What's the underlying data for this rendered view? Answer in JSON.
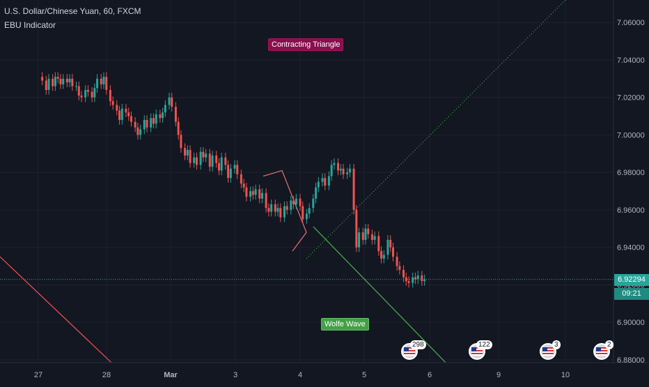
{
  "header": {
    "title": "U.S. Dollar/Chinese Yuan, 60, FXCM",
    "indicator": "EBU Indicator"
  },
  "annotations": {
    "contracting_triangle": "Contracting Triangle",
    "wolfe_wave": "Wolfe Wave"
  },
  "price_tag": {
    "price": "6.92294",
    "countdown": "09:21"
  },
  "events": [
    {
      "count": "298"
    },
    {
      "count": "122"
    },
    {
      "count": "3"
    },
    {
      "count": "2"
    }
  ],
  "colors": {
    "background": "#131722",
    "up": "#26a69a",
    "down": "#ef5350",
    "grid": "#1e222d",
    "tri": "#e57373",
    "wolfe": "#4caf50",
    "label_tri": "#880e4f",
    "label_wolfe": "#43a047"
  },
  "chart_data": {
    "type": "candlestick",
    "title": "U.S. Dollar/Chinese Yuan, 60, FXCM",
    "xlabel": "",
    "ylabel": "",
    "y_ticks": [
      "6.88000",
      "6.90000",
      "6.92000",
      "6.94000",
      "6.96000",
      "6.98000",
      "7.00000",
      "7.02000",
      "7.04000",
      "7.06000"
    ],
    "ylim": [
      6.8785,
      7.072
    ],
    "x_ticks": [
      "27",
      "28",
      "Mar",
      "3",
      "4",
      "5",
      "6",
      "9",
      "10"
    ],
    "grid": true,
    "current_price": 6.92294,
    "close_path": [
      [
        0.0,
        7.031
      ],
      [
        0.03,
        7.029
      ],
      [
        0.06,
        7.024
      ],
      [
        0.08,
        7.03
      ],
      [
        0.11,
        7.026
      ],
      [
        0.13,
        7.031
      ],
      [
        0.15,
        7.03
      ],
      [
        0.17,
        7.027
      ],
      [
        0.19,
        7.03
      ],
      [
        0.22,
        7.028
      ],
      [
        0.24,
        7.03
      ],
      [
        0.26,
        7.026
      ],
      [
        0.29,
        7.026
      ],
      [
        0.31,
        7.021
      ],
      [
        0.33,
        7.02
      ],
      [
        0.36,
        7.024
      ],
      [
        0.38,
        7.023
      ],
      [
        0.41,
        7.02
      ],
      [
        0.43,
        7.025
      ],
      [
        0.45,
        7.03
      ],
      [
        0.48,
        7.027
      ],
      [
        0.5,
        7.031
      ],
      [
        0.52,
        7.024
      ],
      [
        0.55,
        7.018
      ],
      [
        0.57,
        7.016
      ],
      [
        0.6,
        7.013
      ],
      [
        0.62,
        7.008
      ],
      [
        0.64,
        7.014
      ],
      [
        0.67,
        7.012
      ],
      [
        0.69,
        7.01
      ],
      [
        0.71,
        7.007
      ],
      [
        0.74,
        7.004
      ],
      [
        0.76,
        7.0
      ],
      [
        0.78,
        7.003
      ],
      [
        0.81,
        7.008
      ],
      [
        0.83,
        7.004
      ],
      [
        0.86,
        7.009
      ],
      [
        0.88,
        7.006
      ],
      [
        0.9,
        7.011
      ],
      [
        0.93,
        7.009
      ],
      [
        0.95,
        7.012
      ],
      [
        0.97,
        7.016
      ],
      [
        1.0,
        7.02
      ],
      [
        1.02,
        7.015
      ],
      [
        1.05,
        7.007
      ],
      [
        1.07,
        7.0
      ],
      [
        1.09,
        6.993
      ],
      [
        1.12,
        6.989
      ],
      [
        1.14,
        6.992
      ],
      [
        1.16,
        6.985
      ],
      [
        1.19,
        6.988
      ],
      [
        1.21,
        6.984
      ],
      [
        1.24,
        6.991
      ],
      [
        1.26,
        6.988
      ],
      [
        1.28,
        6.99
      ],
      [
        1.31,
        6.983
      ],
      [
        1.33,
        6.989
      ],
      [
        1.36,
        6.985
      ],
      [
        1.38,
        6.981
      ],
      [
        1.4,
        6.988
      ],
      [
        1.43,
        6.984
      ],
      [
        1.45,
        6.977
      ],
      [
        1.47,
        6.982
      ],
      [
        1.5,
        6.984
      ],
      [
        1.52,
        6.979
      ],
      [
        1.55,
        6.974
      ],
      [
        1.57,
        6.972
      ],
      [
        1.59,
        6.967
      ],
      [
        1.62,
        6.97
      ],
      [
        1.64,
        6.968
      ],
      [
        1.66,
        6.971
      ],
      [
        1.69,
        6.966
      ],
      [
        1.71,
        6.969
      ],
      [
        1.74,
        6.961
      ],
      [
        1.76,
        6.959
      ],
      [
        1.78,
        6.963
      ],
      [
        1.81,
        6.959
      ],
      [
        1.83,
        6.961
      ],
      [
        1.85,
        6.956
      ],
      [
        1.88,
        6.962
      ],
      [
        1.9,
        6.96
      ],
      [
        1.93,
        6.965
      ],
      [
        1.95,
        6.963
      ],
      [
        1.97,
        6.966
      ],
      [
        2.0,
        6.962
      ],
      [
        2.02,
        6.955
      ],
      [
        2.05,
        6.958
      ],
      [
        2.07,
        6.961
      ],
      [
        2.1,
        6.966
      ],
      [
        2.12,
        6.972
      ],
      [
        2.14,
        6.975
      ],
      [
        2.17,
        6.977
      ],
      [
        2.19,
        6.973
      ],
      [
        2.22,
        6.978
      ],
      [
        2.24,
        6.984
      ],
      [
        2.26,
        6.985
      ],
      [
        2.29,
        6.981
      ],
      [
        2.31,
        6.982
      ],
      [
        2.33,
        6.979
      ],
      [
        2.36,
        6.98
      ],
      [
        2.38,
        6.982
      ],
      [
        2.41,
        6.96
      ],
      [
        2.43,
        6.94
      ],
      [
        2.45,
        6.948
      ],
      [
        2.48,
        6.944
      ],
      [
        2.5,
        6.95
      ],
      [
        2.52,
        6.947
      ],
      [
        2.55,
        6.944
      ],
      [
        2.57,
        6.946
      ],
      [
        2.6,
        6.938
      ],
      [
        2.62,
        6.934
      ],
      [
        2.64,
        6.936
      ],
      [
        2.67,
        6.944
      ],
      [
        2.69,
        6.94
      ],
      [
        2.71,
        6.935
      ],
      [
        2.74,
        6.93
      ],
      [
        2.76,
        6.928
      ],
      [
        2.79,
        6.924
      ],
      [
        2.81,
        6.922
      ],
      [
        2.83,
        6.921
      ],
      [
        2.86,
        6.924
      ],
      [
        2.88,
        6.923
      ],
      [
        2.9,
        6.925
      ],
      [
        2.93,
        6.922
      ],
      [
        2.95,
        6.923
      ]
    ]
  }
}
